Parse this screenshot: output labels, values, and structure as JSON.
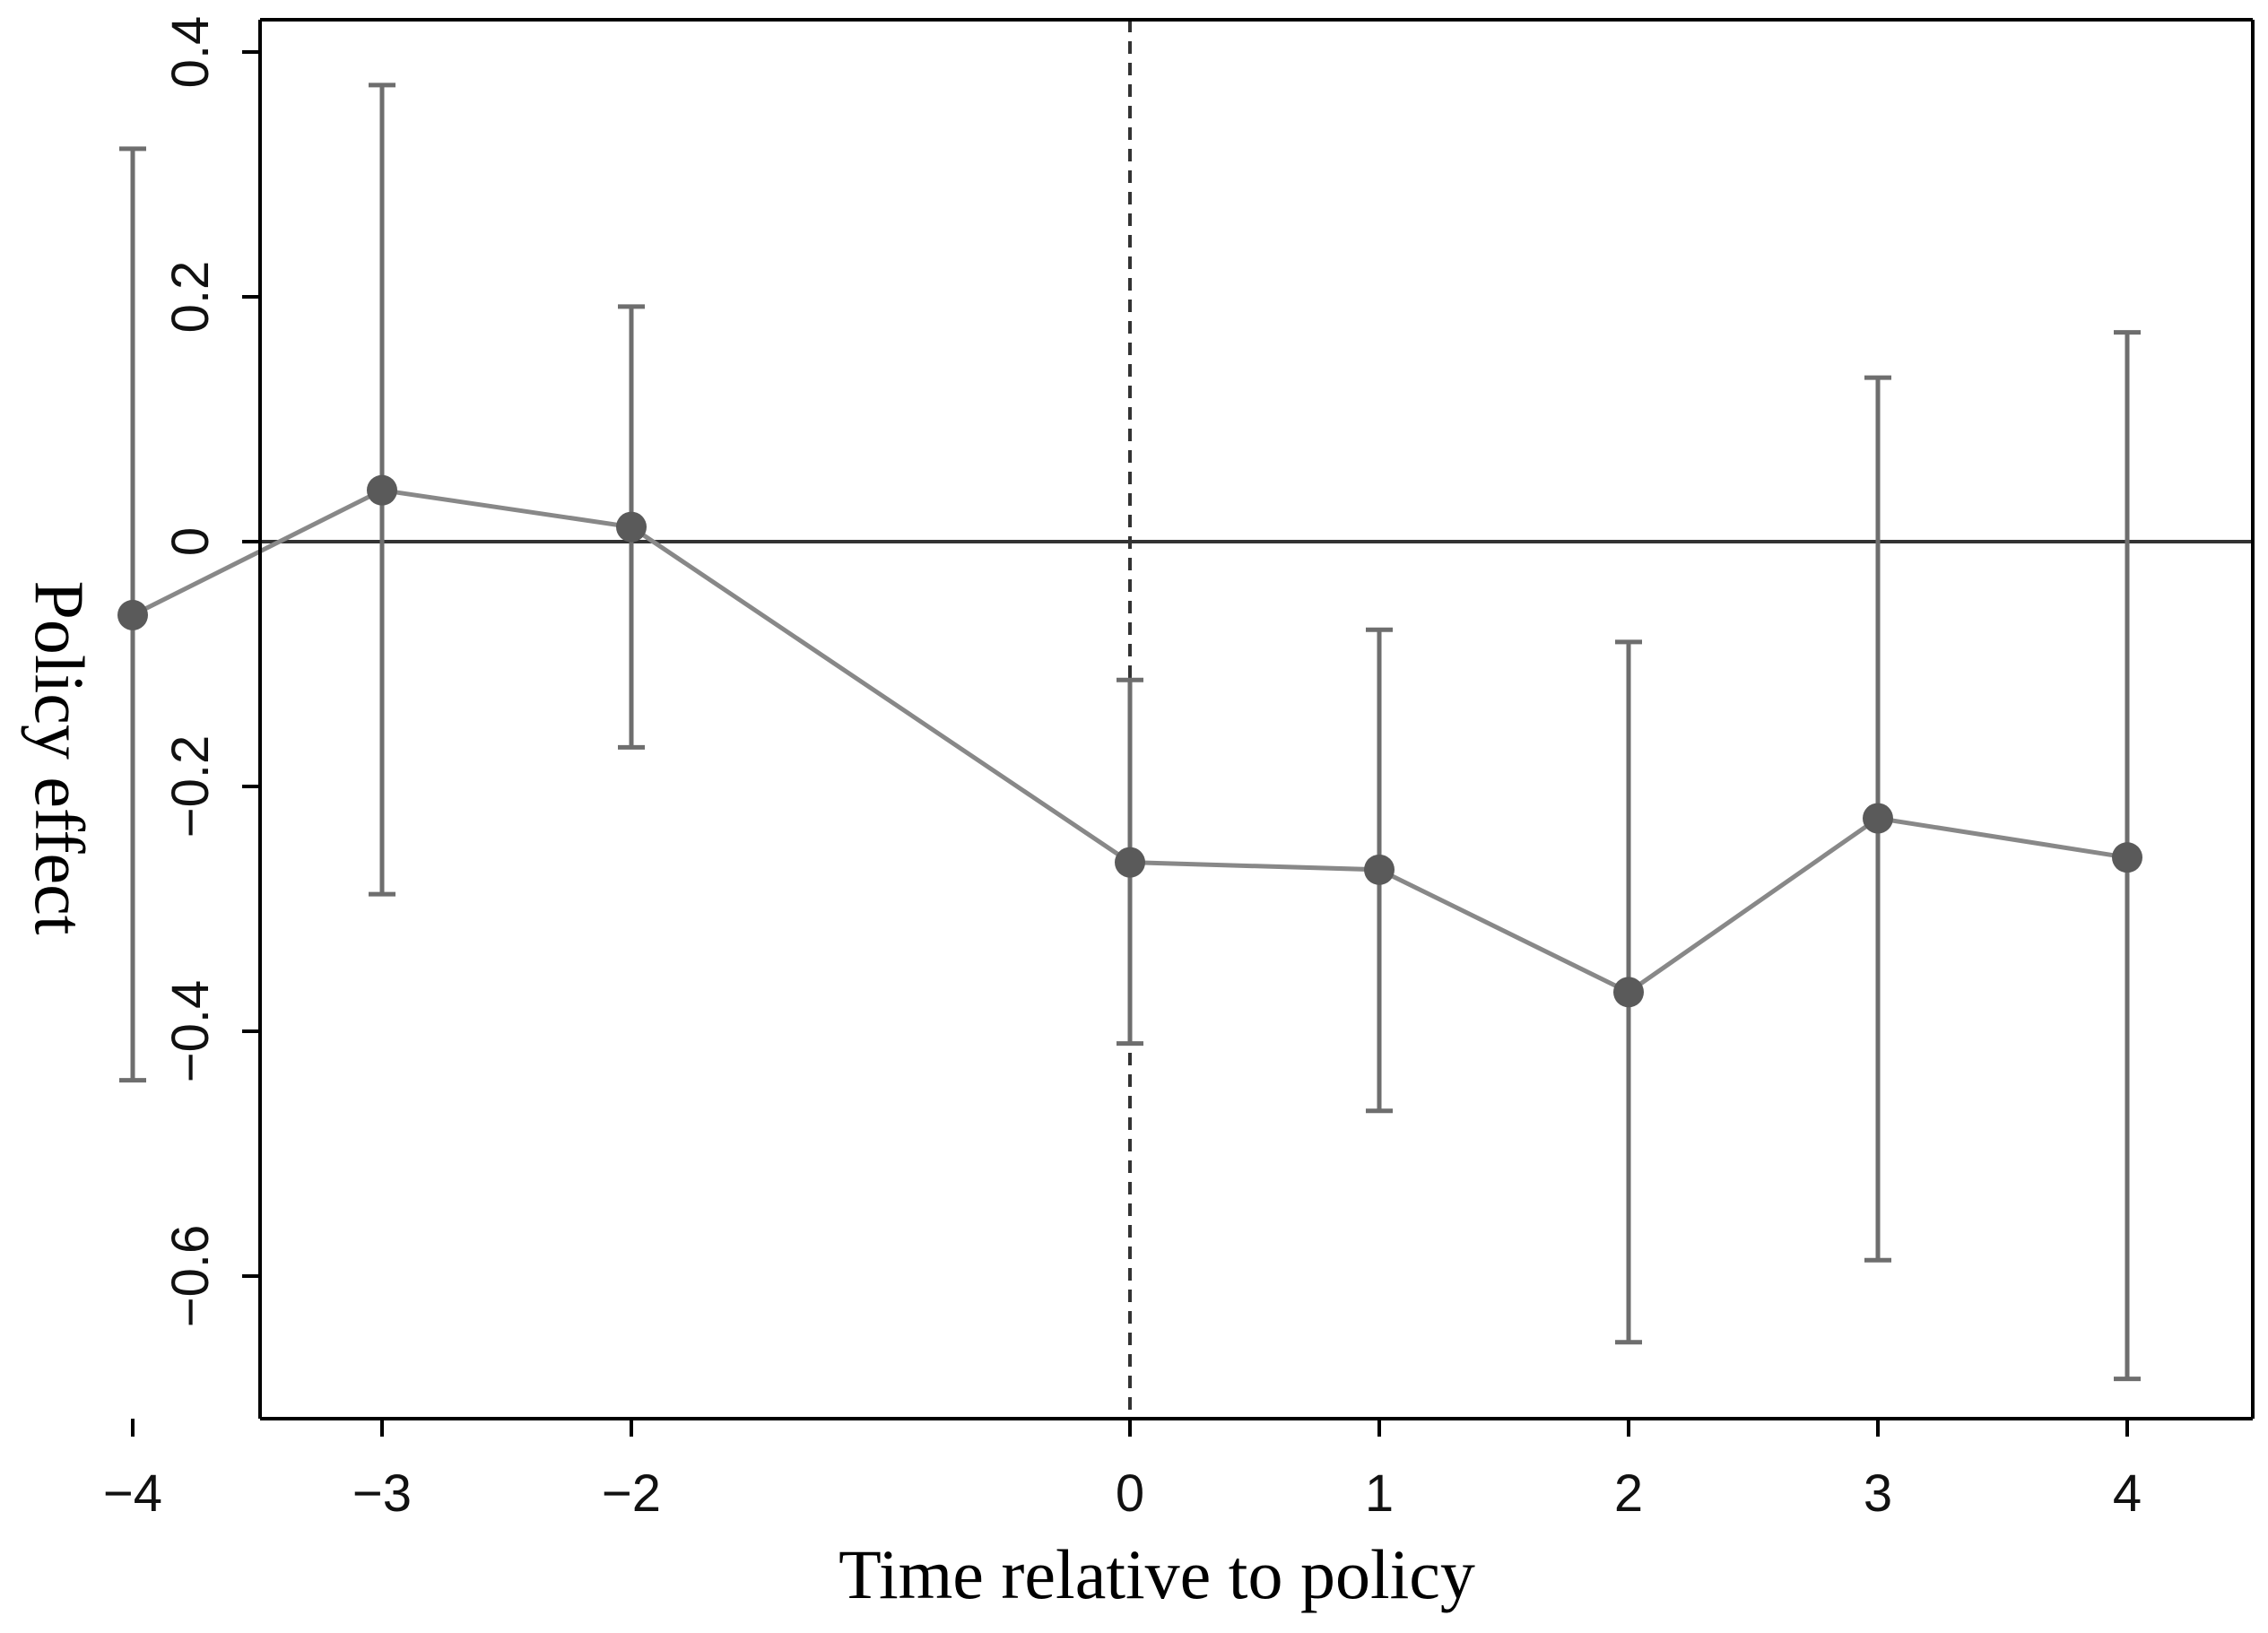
{
  "chart_data": {
    "type": "line",
    "title": "",
    "xlabel": "Time relative to policy",
    "ylabel": "Policy effect",
    "categories": [
      "−4",
      "−3",
      "−2",
      "0",
      "1",
      "2",
      "3",
      "4"
    ],
    "x": [
      -4,
      -3,
      -2,
      0,
      1,
      2,
      3,
      4
    ],
    "series": [
      {
        "values": [
          -0.06,
          0.042,
          0.012,
          -0.262,
          -0.268,
          -0.368,
          -0.226,
          -0.258
        ],
        "ci_lower": [
          -0.44,
          -0.288,
          -0.168,
          -0.41,
          -0.465,
          -0.654,
          -0.587,
          -0.684
        ],
        "ci_upper": [
          0.321,
          0.373,
          0.192,
          -0.113,
          -0.072,
          -0.082,
          0.134,
          0.171
        ]
      }
    ],
    "yticks": [
      0.4,
      0.2,
      0,
      -0.2,
      -0.4,
      -0.6
    ],
    "ytick_labels": [
      "0.4",
      "0.2",
      "0",
      "−0.2",
      "−0.4",
      "−0.6"
    ],
    "ylim": [
      -0.72,
      0.43
    ],
    "reference_lines": {
      "horizontal_at_y": 0,
      "vertical_dashed_at_x": 0
    },
    "grid": false,
    "legend": "none",
    "colors": {
      "series": "#888888",
      "error_bars": "#6e6e6e",
      "markers": "#5a5a5a",
      "reference_line": "#333333",
      "frame": "#000000"
    }
  }
}
